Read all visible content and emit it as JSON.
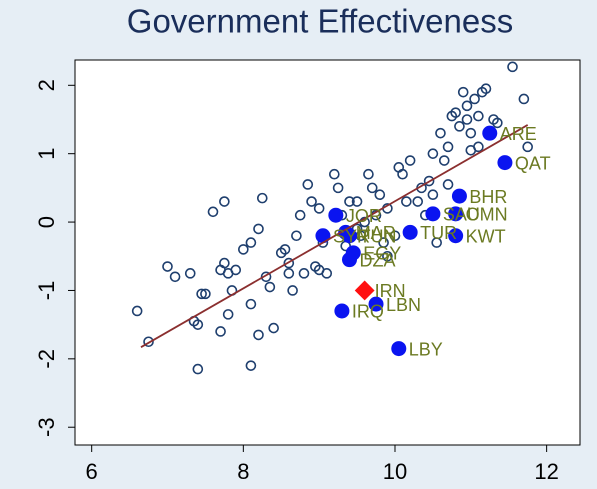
{
  "chart_data": {
    "type": "scatter",
    "title": "Government Effectiveness",
    "xlim": [
      5.78,
      12.44
    ],
    "ylim": [
      -3.26,
      2.37
    ],
    "xticks": [
      6,
      8,
      10,
      12
    ],
    "yticks": [
      -3,
      -2,
      -1,
      0,
      1,
      2
    ],
    "series": [
      {
        "marker": "hollow",
        "color": "#1f3f6e",
        "x": [
          6.6,
          6.75,
          7.0,
          7.1,
          7.3,
          7.35,
          7.4,
          7.45,
          7.5,
          7.4,
          7.6,
          7.7,
          7.75,
          7.8,
          7.7,
          7.8,
          7.85,
          7.9,
          7.75,
          8.0,
          8.1,
          8.1,
          8.2,
          8.2,
          8.25,
          8.3,
          8.35,
          8.4,
          8.1,
          8.5,
          8.55,
          8.6,
          8.6,
          8.65,
          8.7,
          8.75,
          8.8,
          8.85,
          8.9,
          8.95,
          9.0,
          9.0,
          9.05,
          9.1,
          9.2,
          9.25,
          9.3,
          9.35,
          9.4,
          9.5,
          9.5,
          9.55,
          9.6,
          9.65,
          9.7,
          9.75,
          9.8,
          9.85,
          9.9,
          9.9,
          10.0,
          10.05,
          10.1,
          10.15,
          10.2,
          10.3,
          10.35,
          10.4,
          10.45,
          10.5,
          10.55,
          10.6,
          10.65,
          10.7,
          10.75,
          10.8,
          10.85,
          10.9,
          10.95,
          11.0,
          11.05,
          11.1,
          11.15,
          11.2,
          11.3,
          11.35,
          11.0,
          11.1,
          11.55,
          11.7,
          11.75,
          10.95,
          10.7,
          10.5
        ],
        "y": [
          -1.3,
          -1.75,
          -0.65,
          -0.8,
          -0.75,
          -1.45,
          -2.15,
          -1.05,
          -1.05,
          -1.5,
          0.15,
          -0.7,
          -0.6,
          -0.75,
          -1.6,
          -1.35,
          -1.0,
          -0.7,
          0.3,
          -0.4,
          -0.3,
          -1.2,
          -1.65,
          -0.1,
          0.35,
          -0.8,
          -0.95,
          -1.55,
          -2.1,
          -0.45,
          -0.4,
          -0.6,
          -0.75,
          -1.0,
          -0.2,
          0.1,
          -0.75,
          0.55,
          0.3,
          -0.65,
          -0.7,
          0.2,
          -0.3,
          -0.75,
          0.7,
          0.5,
          0.1,
          -0.35,
          0.3,
          0.3,
          -0.1,
          -0.2,
          0.0,
          0.7,
          0.5,
          0.1,
          0.4,
          -0.3,
          0.2,
          -0.5,
          -0.2,
          0.8,
          0.7,
          0.3,
          0.9,
          0.3,
          0.5,
          0.1,
          0.6,
          1.0,
          -0.3,
          1.3,
          0.9,
          1.1,
          1.55,
          1.6,
          1.4,
          1.9,
          1.7,
          1.3,
          1.8,
          1.55,
          1.9,
          1.95,
          1.5,
          1.45,
          1.05,
          1.1,
          2.27,
          1.8,
          1.1,
          1.5,
          0.55,
          0.4
        ]
      },
      {
        "marker": "filled",
        "color": "#0a14f0",
        "x": [
          11.25,
          11.45,
          10.85,
          10.8,
          10.5,
          10.8,
          10.2,
          9.22,
          9.05,
          9.4,
          9.35,
          9.45,
          9.4,
          9.75,
          9.3,
          10.05
        ],
        "y": [
          1.3,
          0.87,
          0.38,
          0.12,
          0.12,
          -0.2,
          -0.15,
          0.1,
          -0.2,
          -0.2,
          -0.15,
          -0.45,
          -0.55,
          -1.2,
          -1.3,
          -1.85
        ],
        "labels": [
          "ARE",
          "QAT",
          "BHR",
          "OMN",
          "SAU",
          "KWT",
          "TUR",
          "JOR",
          "SYR",
          "TUN",
          "MAR",
          "EGY",
          "DZA",
          "LBN",
          "IRQ",
          "LBY"
        ]
      },
      {
        "marker": "diamond",
        "color": "#ff1010",
        "x": [
          9.6
        ],
        "y": [
          -1.0
        ],
        "labels": [
          "IRN"
        ]
      }
    ],
    "fit_line": {
      "color": "#8b2f2f",
      "x": [
        6.65,
        11.75
      ],
      "y": [
        -1.83,
        1.42
      ]
    }
  }
}
